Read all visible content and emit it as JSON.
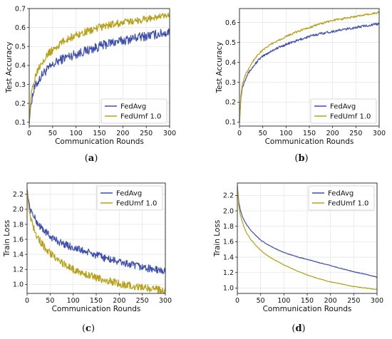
{
  "chart_data": [
    {
      "type": "line",
      "caption_open": "(",
      "caption_letter": "a",
      "caption_close": ")",
      "xlabel": "Communication Rounds",
      "ylabel": "Test Accuracy",
      "xlim": [
        0,
        300
      ],
      "ylim": [
        0.08,
        0.7
      ],
      "xticks": [
        "0",
        "50",
        "100",
        "150",
        "200",
        "250",
        "300"
      ],
      "yticks": [
        "0.1",
        "0.2",
        "0.3",
        "0.4",
        "0.5",
        "0.6",
        "0.7"
      ],
      "xtick_values": [
        0,
        50,
        100,
        150,
        200,
        250,
        300
      ],
      "ytick_values": [
        0.1,
        0.2,
        0.3,
        0.4,
        0.5,
        0.6,
        0.7
      ],
      "legend_position": "lower-right",
      "series": [
        {
          "name": "FedAvg",
          "color": "#3f4fad",
          "x": [
            0,
            3,
            6,
            10,
            15,
            20,
            30,
            40,
            50,
            60,
            75,
            100,
            125,
            150,
            175,
            200,
            225,
            250,
            275,
            300
          ],
          "y": [
            0.1,
            0.18,
            0.23,
            0.27,
            0.3,
            0.32,
            0.36,
            0.38,
            0.4,
            0.42,
            0.44,
            0.46,
            0.48,
            0.5,
            0.52,
            0.53,
            0.545,
            0.555,
            0.565,
            0.575
          ],
          "noise": 0.025
        },
        {
          "name": "FedUmf 1.0",
          "color": "#b8a019",
          "x": [
            0,
            3,
            6,
            10,
            15,
            20,
            30,
            40,
            50,
            60,
            75,
            100,
            125,
            150,
            175,
            200,
            225,
            250,
            275,
            300
          ],
          "y": [
            0.1,
            0.21,
            0.27,
            0.32,
            0.36,
            0.39,
            0.43,
            0.46,
            0.48,
            0.5,
            0.53,
            0.56,
            0.58,
            0.6,
            0.615,
            0.625,
            0.635,
            0.645,
            0.655,
            0.66
          ],
          "noise": 0.02
        }
      ]
    },
    {
      "type": "line",
      "caption_open": "(",
      "caption_letter": "b",
      "caption_close": ")",
      "xlabel": "Communication Rounds",
      "ylabel": "Test Accuracy",
      "xlim": [
        0,
        300
      ],
      "ylim": [
        0.08,
        0.67
      ],
      "xticks": [
        "0",
        "50",
        "100",
        "150",
        "200",
        "250",
        "300"
      ],
      "yticks": [
        "0.1",
        "0.2",
        "0.3",
        "0.4",
        "0.5",
        "0.6"
      ],
      "xtick_values": [
        0,
        50,
        100,
        150,
        200,
        250,
        300
      ],
      "ytick_values": [
        0.1,
        0.2,
        0.3,
        0.4,
        0.5,
        0.6
      ],
      "legend_position": "lower-right",
      "series": [
        {
          "name": "FedAvg",
          "color": "#3f4fad",
          "x": [
            0,
            3,
            6,
            10,
            15,
            20,
            30,
            40,
            50,
            60,
            75,
            100,
            125,
            150,
            175,
            200,
            225,
            250,
            275,
            300
          ],
          "y": [
            0.1,
            0.22,
            0.27,
            0.3,
            0.33,
            0.35,
            0.38,
            0.41,
            0.43,
            0.445,
            0.465,
            0.49,
            0.51,
            0.53,
            0.545,
            0.555,
            0.565,
            0.575,
            0.585,
            0.593
          ],
          "noise": 0.006
        },
        {
          "name": "FedUmf 1.0",
          "color": "#b8a019",
          "x": [
            0,
            3,
            6,
            10,
            15,
            20,
            30,
            40,
            50,
            60,
            75,
            100,
            125,
            150,
            175,
            200,
            225,
            250,
            275,
            300
          ],
          "y": [
            0.1,
            0.23,
            0.29,
            0.32,
            0.35,
            0.37,
            0.41,
            0.44,
            0.46,
            0.48,
            0.5,
            0.53,
            0.555,
            0.575,
            0.595,
            0.61,
            0.62,
            0.63,
            0.64,
            0.65
          ],
          "noise": 0.005
        }
      ]
    },
    {
      "type": "line",
      "caption_open": "(",
      "caption_letter": "c",
      "caption_close": ")",
      "xlabel": "Communication Rounds",
      "ylabel": "Train Loss",
      "xlim": [
        0,
        300
      ],
      "ylim": [
        0.88,
        2.35
      ],
      "xticks": [
        "0",
        "50",
        "100",
        "150",
        "200",
        "250",
        "300"
      ],
      "yticks": [
        "1.0",
        "1.2",
        "1.4",
        "1.6",
        "1.8",
        "2.0",
        "2.2"
      ],
      "xtick_values": [
        0,
        50,
        100,
        150,
        200,
        250,
        300
      ],
      "ytick_values": [
        1.0,
        1.2,
        1.4,
        1.6,
        1.8,
        2.0,
        2.2
      ],
      "legend_position": "upper-right",
      "series": [
        {
          "name": "FedAvg",
          "color": "#3f4fad",
          "x": [
            0,
            3,
            6,
            10,
            15,
            20,
            30,
            40,
            50,
            60,
            75,
            100,
            125,
            150,
            175,
            200,
            225,
            250,
            275,
            300
          ],
          "y": [
            2.28,
            2.12,
            2.03,
            1.96,
            1.9,
            1.84,
            1.76,
            1.7,
            1.64,
            1.6,
            1.55,
            1.49,
            1.44,
            1.39,
            1.34,
            1.3,
            1.26,
            1.23,
            1.2,
            1.17
          ],
          "noise": 0.05
        },
        {
          "name": "FedUmf 1.0",
          "color": "#b8a019",
          "x": [
            0,
            3,
            6,
            10,
            15,
            20,
            30,
            40,
            50,
            60,
            75,
            100,
            125,
            150,
            175,
            200,
            225,
            250,
            275,
            300
          ],
          "y": [
            2.28,
            2.05,
            1.93,
            1.84,
            1.75,
            1.67,
            1.56,
            1.48,
            1.42,
            1.36,
            1.29,
            1.2,
            1.14,
            1.09,
            1.05,
            1.01,
            0.98,
            0.96,
            0.94,
            0.92
          ],
          "noise": 0.05
        }
      ]
    },
    {
      "type": "line",
      "caption_open": "(",
      "caption_letter": "d",
      "caption_close": ")",
      "xlabel": "Communication Rounds",
      "ylabel": "Train Loss",
      "xlim": [
        0,
        300
      ],
      "ylim": [
        0.93,
        2.36
      ],
      "xticks": [
        "0",
        "50",
        "100",
        "150",
        "200",
        "250",
        "300"
      ],
      "yticks": [
        "1.0",
        "1.2",
        "1.4",
        "1.6",
        "1.8",
        "2.0",
        "2.2"
      ],
      "xtick_values": [
        0,
        50,
        100,
        150,
        200,
        250,
        300
      ],
      "ytick_values": [
        1.0,
        1.2,
        1.4,
        1.6,
        1.8,
        2.0,
        2.2
      ],
      "legend_position": "upper-right",
      "series": [
        {
          "name": "FedAvg",
          "color": "#3f4fad",
          "x": [
            0,
            3,
            6,
            10,
            15,
            20,
            30,
            40,
            50,
            60,
            75,
            100,
            125,
            150,
            175,
            200,
            225,
            250,
            275,
            300
          ],
          "y": [
            2.32,
            2.12,
            2.02,
            1.94,
            1.87,
            1.82,
            1.74,
            1.68,
            1.62,
            1.58,
            1.53,
            1.46,
            1.41,
            1.37,
            1.33,
            1.29,
            1.25,
            1.21,
            1.18,
            1.14
          ],
          "noise": 0.004
        },
        {
          "name": "FedUmf 1.0",
          "color": "#b8a019",
          "x": [
            0,
            3,
            6,
            10,
            15,
            20,
            30,
            40,
            50,
            60,
            75,
            100,
            125,
            150,
            175,
            200,
            225,
            250,
            275,
            300
          ],
          "y": [
            2.32,
            2.07,
            1.96,
            1.87,
            1.78,
            1.71,
            1.62,
            1.55,
            1.49,
            1.44,
            1.38,
            1.3,
            1.23,
            1.17,
            1.12,
            1.08,
            1.05,
            1.02,
            1.0,
            0.98
          ],
          "noise": 0.004
        }
      ]
    }
  ]
}
